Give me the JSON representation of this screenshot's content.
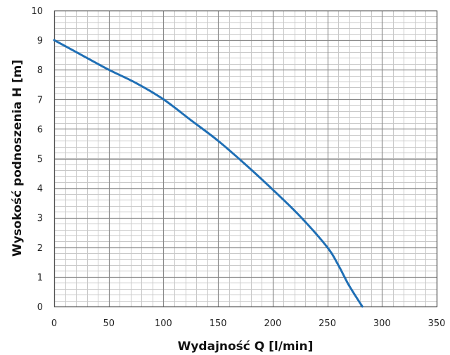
{
  "chart_data": {
    "type": "line",
    "title": "",
    "xlabel": "Wydajność Q [l/min]",
    "ylabel": "Wysokość podnoszenia H [m]",
    "xlim": [
      0,
      350
    ],
    "ylim": [
      0,
      10
    ],
    "x_major_step": 50,
    "x_minor_step": 10,
    "y_major_step": 1,
    "y_minor_step": 0.2,
    "grid": true,
    "legend": "none",
    "x_ticks": [
      "0",
      "50",
      "100",
      "150",
      "200",
      "250",
      "300",
      "350"
    ],
    "y_ticks": [
      "0",
      "1",
      "2",
      "3",
      "4",
      "5",
      "6",
      "7",
      "8",
      "9",
      "10"
    ],
    "series": [
      {
        "color": "#1f6fb5",
        "x": [
          0,
          25,
          50,
          75,
          100,
          125,
          150,
          175,
          200,
          225,
          250,
          260,
          270,
          282
        ],
        "y": [
          9.0,
          8.5,
          8.0,
          7.55,
          7.0,
          6.3,
          5.6,
          4.8,
          3.95,
          3.05,
          2.0,
          1.4,
          0.7,
          0.0
        ]
      }
    ]
  }
}
